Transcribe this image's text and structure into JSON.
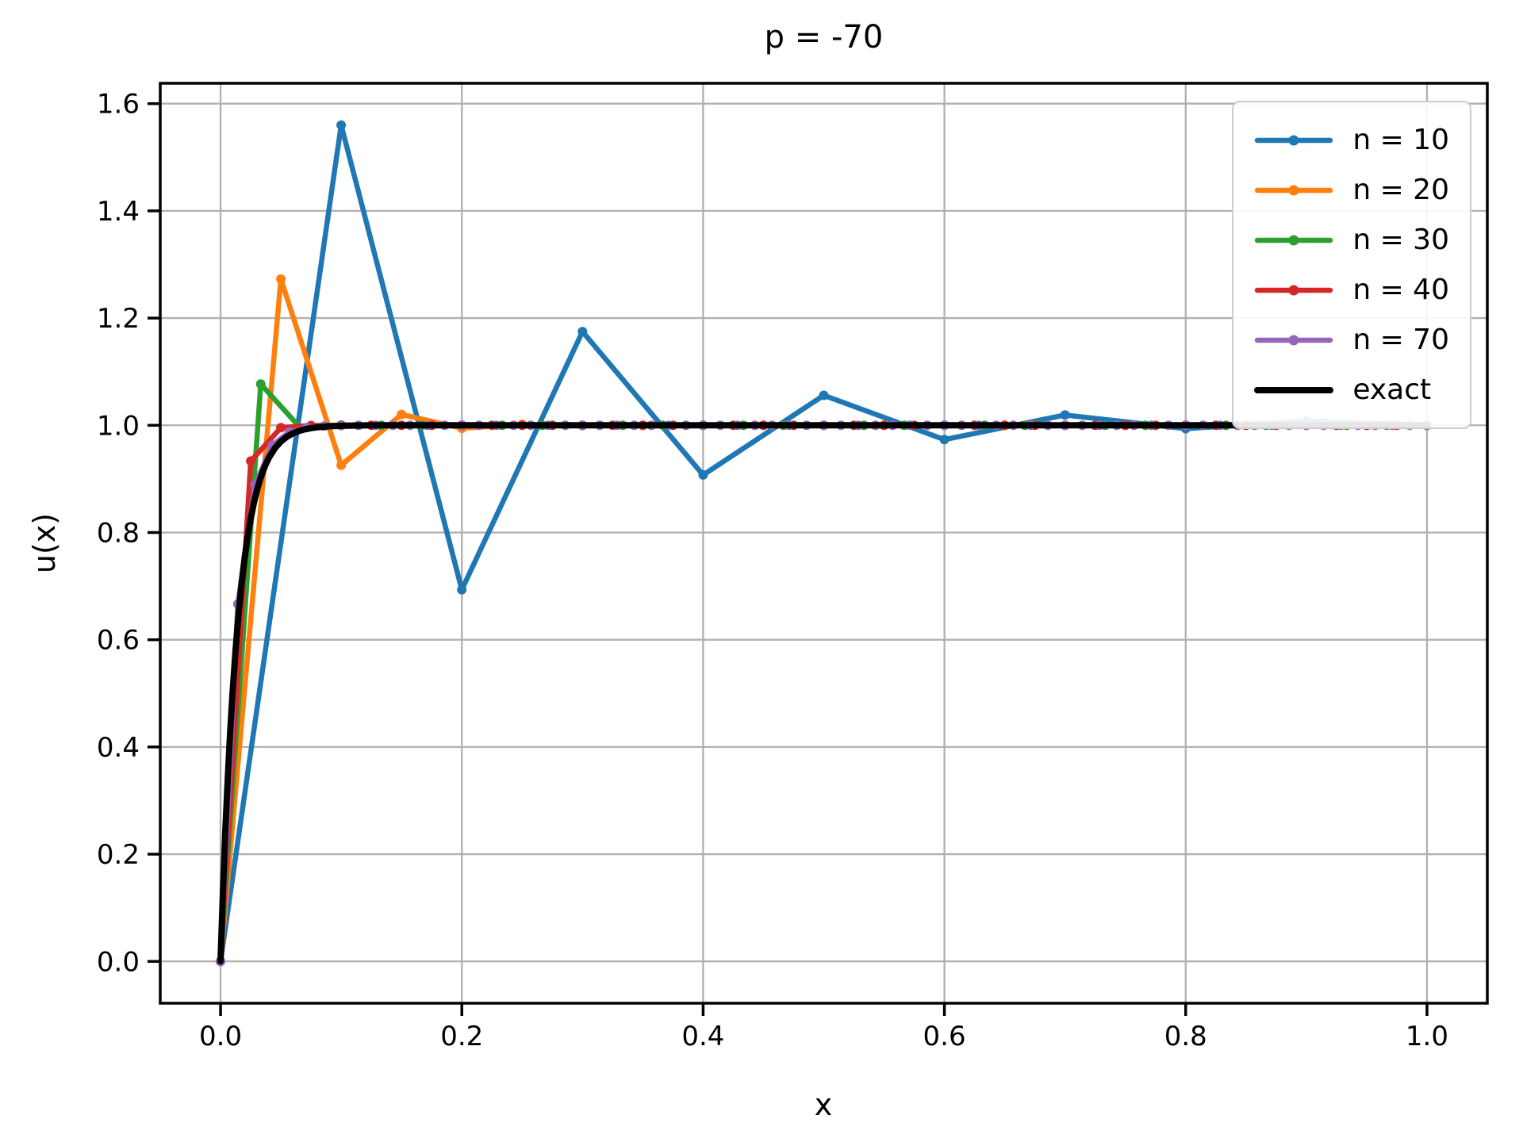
{
  "chart_data": {
    "type": "line",
    "title": "p = -70",
    "xlabel": "x",
    "ylabel": "u(x)",
    "xlim": [
      -0.05,
      1.05
    ],
    "ylim": [
      -0.078,
      1.638
    ],
    "grid": true,
    "grid_color": "#b0b0b0",
    "legend_position": "upper right",
    "xticks": {
      "values": [
        0.0,
        0.2,
        0.4,
        0.6,
        0.8,
        1.0
      ],
      "labels": [
        "0.0",
        "0.2",
        "0.4",
        "0.6",
        "0.8",
        "1.0"
      ]
    },
    "yticks": {
      "values": [
        0.0,
        0.2,
        0.4,
        0.6,
        0.8,
        1.0,
        1.2,
        1.4,
        1.6
      ],
      "labels": [
        "0.0",
        "0.2",
        "0.4",
        "0.6",
        "0.8",
        "1.0",
        "1.2",
        "1.4",
        "1.6"
      ]
    },
    "series": [
      {
        "name": "n = 10",
        "color": "#1f77b4",
        "marker": true,
        "n": 10,
        "y": [
          0.0,
          1.5599,
          0.6933,
          1.1748,
          0.9073,
          1.0559,
          0.9733,
          1.0192,
          0.9937,
          1.0079,
          1.0
        ]
      },
      {
        "name": "n = 20",
        "color": "#ff7f0e",
        "marker": true,
        "n": 20,
        "y": [
          0.0,
          1.2727,
          0.9256,
          1.0203,
          0.9945,
          1.0015,
          0.9996,
          1.0001,
          1.0,
          1.0,
          1.0,
          1.0,
          1.0,
          1.0,
          1.0,
          1.0,
          1.0,
          1.0,
          1.0,
          1.0,
          1.0
        ]
      },
      {
        "name": "n = 30",
        "color": "#2ca02c",
        "marker": true,
        "n": 30,
        "y": [
          0.0,
          1.0769,
          0.9941,
          1.0005,
          1.0,
          1.0,
          1.0,
          1.0,
          1.0,
          1.0,
          1.0,
          1.0,
          1.0,
          1.0,
          1.0,
          1.0,
          1.0,
          1.0,
          1.0,
          1.0,
          1.0,
          1.0,
          1.0,
          1.0,
          1.0,
          1.0,
          1.0,
          1.0,
          1.0,
          1.0,
          1.0
        ]
      },
      {
        "name": "n = 40",
        "color": "#d62728",
        "marker": true,
        "n": 40,
        "y": [
          0.0,
          0.9333,
          0.9956,
          0.9997,
          1.0,
          1.0,
          1.0,
          1.0,
          1.0,
          1.0,
          1.0,
          1.0,
          1.0,
          1.0,
          1.0,
          1.0,
          1.0,
          1.0,
          1.0,
          1.0,
          1.0,
          1.0,
          1.0,
          1.0,
          1.0,
          1.0,
          1.0,
          1.0,
          1.0,
          1.0,
          1.0,
          1.0,
          1.0,
          1.0,
          1.0,
          1.0,
          1.0,
          1.0,
          1.0,
          1.0,
          1.0
        ]
      },
      {
        "name": "n = 70",
        "color": "#9467bd",
        "marker": true,
        "n": 70,
        "y": [
          0.0,
          0.6667,
          0.8889,
          0.963,
          0.9877,
          0.9959,
          0.9986,
          0.9995,
          0.9998,
          0.9999,
          1.0,
          1.0,
          1.0,
          1.0,
          1.0,
          1.0,
          1.0,
          1.0,
          1.0,
          1.0,
          1.0,
          1.0,
          1.0,
          1.0,
          1.0,
          1.0,
          1.0,
          1.0,
          1.0,
          1.0,
          1.0,
          1.0,
          1.0,
          1.0,
          1.0,
          1.0,
          1.0,
          1.0,
          1.0,
          1.0,
          1.0,
          1.0,
          1.0,
          1.0,
          1.0,
          1.0,
          1.0,
          1.0,
          1.0,
          1.0,
          1.0,
          1.0,
          1.0,
          1.0,
          1.0,
          1.0,
          1.0,
          1.0,
          1.0,
          1.0,
          1.0,
          1.0,
          1.0,
          1.0,
          1.0,
          1.0,
          1.0,
          1.0,
          1.0,
          1.0,
          1.0
        ]
      },
      {
        "name": "exact",
        "color": "#000000",
        "marker": false,
        "x": [
          0.0,
          0.002,
          0.004,
          0.006,
          0.008,
          0.01,
          0.0125,
          0.015,
          0.0175,
          0.02,
          0.0225,
          0.025,
          0.0275,
          0.03,
          0.0325,
          0.035,
          0.0375,
          0.04,
          0.045,
          0.05,
          0.055,
          0.06,
          0.065,
          0.07,
          0.075,
          0.08,
          0.09,
          0.1,
          0.11,
          0.12,
          0.14,
          0.16,
          0.2,
          0.25,
          0.3,
          0.4,
          0.5,
          0.6,
          0.7,
          0.8,
          0.9,
          1.0
        ],
        "y": [
          0.0,
          0.1306,
          0.2442,
          0.343,
          0.4288,
          0.5034,
          0.5831,
          0.6501,
          0.7062,
          0.7534,
          0.7929,
          0.8262,
          0.8541,
          0.8775,
          0.8971,
          0.9137,
          0.9276,
          0.9392,
          0.9572,
          0.9698,
          0.9787,
          0.985,
          0.9894,
          0.9926,
          0.9948,
          0.9963,
          0.9982,
          0.9991,
          0.9996,
          0.9998,
          0.9999,
          1.0,
          1.0,
          1.0,
          1.0,
          1.0,
          1.0,
          1.0,
          1.0,
          1.0,
          1.0,
          1.0
        ]
      }
    ]
  }
}
